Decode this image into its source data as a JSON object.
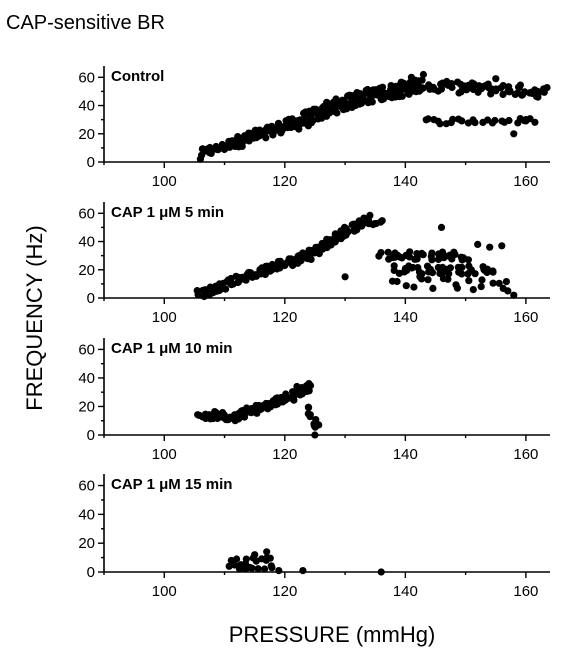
{
  "figure": {
    "title": "CAP-sensitive BR",
    "ylabel": "FREQUENCY (Hz)",
    "xlabel": "PRESSURE (mmHg)"
  },
  "chart_data": [
    {
      "type": "scatter",
      "panel_label": "Control",
      "xlim": [
        90,
        164
      ],
      "ylim": [
        0,
        68
      ],
      "x_ticks": [
        100,
        120,
        140,
        160
      ],
      "y_ticks": [
        0,
        20,
        40,
        60
      ],
      "grid": false,
      "segments": [
        {
          "x0": 106,
          "x1": 112,
          "y0": 6,
          "y1": 14,
          "n": 26,
          "jitter": 3
        },
        {
          "x0": 112,
          "x1": 122,
          "y0": 14,
          "y1": 28,
          "n": 70,
          "jitter": 4
        },
        {
          "x0": 122,
          "x1": 132,
          "y0": 28,
          "y1": 45,
          "n": 90,
          "jitter": 5
        },
        {
          "x0": 132,
          "x1": 142,
          "y0": 45,
          "y1": 54,
          "n": 90,
          "jitter": 5
        },
        {
          "x0": 142,
          "x1": 163,
          "y0": 54,
          "y1": 50,
          "n": 70,
          "jitter": 4
        },
        {
          "x0": 143,
          "x1": 162,
          "y0": 29,
          "y1": 29,
          "n": 26,
          "jitter": 2
        }
      ],
      "points": [
        [
          106,
          2
        ],
        [
          141,
          60
        ],
        [
          143,
          62
        ],
        [
          158,
          20
        ],
        [
          162,
          46
        ],
        [
          155,
          59
        ],
        [
          160,
          30
        ]
      ]
    },
    {
      "type": "scatter",
      "panel_label": "CAP 1 μM 5 min",
      "xlim": [
        90,
        164
      ],
      "ylim": [
        0,
        68
      ],
      "x_ticks": [
        100,
        120,
        140,
        160
      ],
      "y_ticks": [
        0,
        20,
        40,
        60
      ],
      "grid": false,
      "segments": [
        {
          "x0": 106,
          "x1": 114,
          "y0": 3,
          "y1": 16,
          "n": 40,
          "jitter": 3
        },
        {
          "x0": 114,
          "x1": 124,
          "y0": 16,
          "y1": 30,
          "n": 60,
          "jitter": 3
        },
        {
          "x0": 124,
          "x1": 134,
          "y0": 30,
          "y1": 57,
          "n": 80,
          "jitter": 3
        },
        {
          "x0": 134,
          "x1": 136,
          "y0": 52,
          "y1": 54,
          "n": 6,
          "jitter": 2
        },
        {
          "x0": 136,
          "x1": 150,
          "y0": 30,
          "y1": 30,
          "n": 40,
          "jitter": 3
        },
        {
          "x0": 138,
          "x1": 155,
          "y0": 20,
          "y1": 20,
          "n": 40,
          "jitter": 3
        },
        {
          "x0": 138,
          "x1": 157,
          "y0": 12,
          "y1": 8,
          "n": 20,
          "jitter": 4
        }
      ],
      "points": [
        [
          130,
          15
        ],
        [
          146,
          50
        ],
        [
          152,
          38
        ],
        [
          154,
          36
        ],
        [
          156,
          37
        ],
        [
          157,
          5
        ],
        [
          158,
          2
        ]
      ]
    },
    {
      "type": "scatter",
      "panel_label": "CAP 1 μM 10 min",
      "xlim": [
        90,
        164
      ],
      "ylim": [
        0,
        68
      ],
      "x_ticks": [
        100,
        120,
        140,
        160
      ],
      "y_ticks": [
        0,
        20,
        40,
        60
      ],
      "grid": false,
      "segments": [
        {
          "x0": 106,
          "x1": 112,
          "y0": 14,
          "y1": 13,
          "n": 28,
          "jitter": 3
        },
        {
          "x0": 112,
          "x1": 118,
          "y0": 14,
          "y1": 22,
          "n": 40,
          "jitter": 3
        },
        {
          "x0": 118,
          "x1": 124,
          "y0": 22,
          "y1": 33,
          "n": 40,
          "jitter": 3
        },
        {
          "x0": 124,
          "x1": 125.5,
          "y0": 20,
          "y1": 4,
          "n": 10,
          "jitter": 2
        }
      ],
      "points": [
        [
          124,
          36
        ],
        [
          125,
          0
        ],
        [
          122,
          34
        ]
      ]
    },
    {
      "type": "scatter",
      "panel_label": "CAP 1 μM 15 min",
      "xlim": [
        90,
        164
      ],
      "ylim": [
        0,
        68
      ],
      "x_ticks": [
        100,
        120,
        140,
        160
      ],
      "y_ticks": [
        0,
        20,
        40,
        60
      ],
      "grid": false,
      "segments": [
        {
          "x0": 111,
          "x1": 118,
          "y0": 6,
          "y1": 6,
          "n": 22,
          "jitter": 4
        }
      ],
      "points": [
        [
          117,
          14
        ],
        [
          115,
          12
        ],
        [
          119,
          1
        ],
        [
          123,
          1
        ],
        [
          136,
          0
        ],
        [
          112,
          9
        ]
      ]
    }
  ]
}
